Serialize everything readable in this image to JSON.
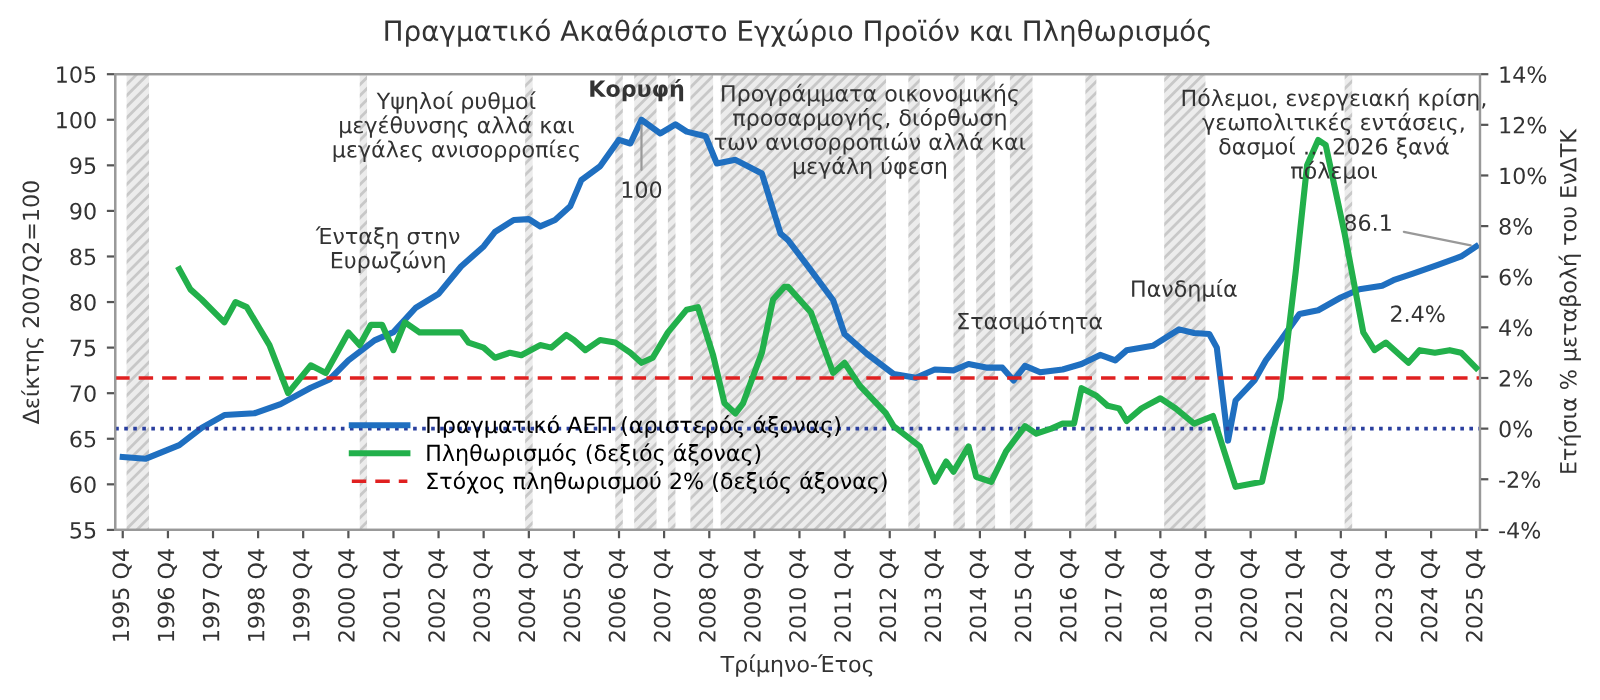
{
  "chart_data": {
    "type": "line",
    "title": "Πραγματικό Ακαθάριστο Εγχώριο Προϊόν και Πληθωρισμός",
    "xlabel": "Τρίμηνο-Έτος",
    "ylabel": "Δείκτης 2007Q2=100",
    "y2label": "Ετήσια % μεταβολή του ΕνΔΤΚ",
    "series": [
      {
        "name": "Πραγματικό ΑΕΠ (αριστερός άξονας)",
        "color": "#1f6fc0",
        "axis": "y",
        "x": [
          "1995-10",
          "1996-04",
          "1997-01",
          "1997-07",
          "1998-01",
          "1998-09",
          "1999-04",
          "1999-12",
          "2000-05",
          "2000-10",
          "2001-05",
          "2001-10",
          "2002-04",
          "2002-10",
          "2003-04",
          "2003-10",
          "2004-01",
          "2004-06",
          "2004-10",
          "2005-01",
          "2005-05",
          "2005-09",
          "2005-12",
          "2006-05",
          "2006-10",
          "2007-01",
          "2007-04",
          "2007-09",
          "2008-01",
          "2008-04",
          "2008-09",
          "2008-12",
          "2009-05",
          "2009-12",
          "2010-05",
          "2010-07",
          "2011-01",
          "2011-07",
          "2011-10",
          "2012-04",
          "2012-11",
          "2013-05",
          "2013-10",
          "2014-03",
          "2014-07",
          "2014-12",
          "2015-04",
          "2015-07",
          "2015-10",
          "2016-02",
          "2016-08",
          "2017-01",
          "2017-06",
          "2017-10",
          "2018-01",
          "2018-08",
          "2019-03",
          "2019-07",
          "2019-11",
          "2020-01",
          "2020-04",
          "2020-06",
          "2020-11",
          "2021-02",
          "2021-06",
          "2021-11",
          "2022-04",
          "2022-10",
          "2023-03",
          "2023-09",
          "2023-12",
          "2024-05",
          "2024-12",
          "2025-06",
          "2025-10"
        ],
        "values": [
          63,
          62.8,
          64.3,
          66.2,
          67.6,
          67.8,
          68.8,
          70.6,
          71.5,
          73.6,
          75.8,
          76.7,
          79.4,
          80.9,
          83.9,
          86.1,
          87.7,
          89.0,
          89.1,
          88.3,
          89.0,
          90.5,
          93.4,
          94.9,
          97.8,
          97.4,
          100,
          98.5,
          99.5,
          98.7,
          98.2,
          95.2,
          95.6,
          94.1,
          87.5,
          86.8,
          83.5,
          80.2,
          76.5,
          74.3,
          72.1,
          71.7,
          72.6,
          72.5,
          73.2,
          72.8,
          72.8,
          71.4,
          73.0,
          72.3,
          72.6,
          73.2,
          74.2,
          73.6,
          74.7,
          75.2,
          77.0,
          76.6,
          76.5,
          75.0,
          64.8,
          69.2,
          71.4,
          73.6,
          75.8,
          78.7,
          79.1,
          80.5,
          81.4,
          81.8,
          82.4,
          83.1,
          84.1,
          85.0,
          86.1
        ]
      },
      {
        "name": "Πληθωρισμός (δεξιός άξονας)",
        "color": "#22b04b",
        "axis": "y2",
        "x": [
          "1997-01",
          "1997-04",
          "1997-07",
          "1998-01",
          "1998-04",
          "1998-07",
          "1999-01",
          "1999-06",
          "1999-12",
          "2000-04",
          "2000-10",
          "2001-01",
          "2001-04",
          "2001-07",
          "2001-10",
          "2002-01",
          "2002-05",
          "2003-04",
          "2003-06",
          "2003-10",
          "2004-01",
          "2004-05",
          "2004-08",
          "2005-01",
          "2005-04",
          "2005-08",
          "2005-10",
          "2006-01",
          "2006-05",
          "2006-09",
          "2007-01",
          "2007-04",
          "2007-07",
          "2007-11",
          "2008-04",
          "2008-07",
          "2008-11",
          "2009-02",
          "2009-05",
          "2009-07",
          "2009-12",
          "2010-03",
          "2010-06",
          "2010-07",
          "2011-01",
          "2011-07",
          "2011-10",
          "2012-02",
          "2012-09",
          "2012-11",
          "2013-06",
          "2013-10",
          "2014-01",
          "2014-03",
          "2014-07",
          "2014-09",
          "2015-01",
          "2015-05",
          "2015-10",
          "2016-01",
          "2016-05",
          "2016-08",
          "2016-11",
          "2017-01",
          "2017-05",
          "2017-08",
          "2017-11",
          "2018-01",
          "2018-05",
          "2018-10",
          "2019-02",
          "2019-07",
          "2019-12",
          "2020-03",
          "2020-06",
          "2021-01",
          "2021-06",
          "2021-10",
          "2022-01",
          "2022-04",
          "2022-06",
          "2022-11",
          "2023-04",
          "2023-07",
          "2023-10",
          "2024-04",
          "2024-07",
          "2024-11",
          "2025-03",
          "2025-06",
          "2025-10"
        ],
        "values": [
          6.3,
          5.5,
          5.1,
          4.2,
          5.0,
          4.8,
          3.3,
          1.4,
          2.5,
          2.2,
          3.8,
          3.3,
          4.1,
          4.1,
          3.1,
          4.2,
          3.8,
          3.8,
          3.4,
          3.2,
          2.8,
          3.0,
          2.9,
          3.3,
          3.2,
          3.7,
          3.5,
          3.1,
          3.5,
          3.4,
          3.0,
          2.6,
          2.8,
          3.8,
          4.7,
          4.8,
          2.9,
          1.0,
          0.6,
          1.0,
          3.0,
          5.1,
          5.6,
          5.6,
          4.6,
          2.2,
          2.6,
          1.7,
          0.6,
          0.1,
          -0.7,
          -2.1,
          -1.3,
          -1.7,
          -0.7,
          -1.9,
          -2.1,
          -0.9,
          0.1,
          -0.2,
          0.0,
          0.2,
          0.2,
          1.6,
          1.3,
          0.9,
          0.8,
          0.3,
          0.8,
          1.2,
          0.8,
          0.2,
          0.5,
          -0.9,
          -2.3,
          -2.1,
          1.2,
          6.2,
          10.4,
          11.4,
          11.2,
          7.7,
          3.8,
          3.1,
          3.4,
          2.6,
          3.1,
          3.0,
          3.1,
          3.0,
          2.4
        ]
      }
    ],
    "ref_lines": [
      {
        "axis": "y2",
        "value": 2,
        "label": "Στόχος πληθωρισμού 2% (δεξιός άξονας)",
        "color": "#e02020",
        "line_style": "dashed"
      },
      {
        "axis": "y2",
        "value": 0,
        "color": "#2a3f9e",
        "line_style": "dotted"
      }
    ],
    "bands": [
      {
        "axis": "x",
        "from": "1995-11",
        "to": "1996-05"
      },
      {
        "axis": "x",
        "from": "2001-01",
        "to": "2001-03"
      },
      {
        "axis": "x",
        "from": "2004-09",
        "to": "2004-11"
      },
      {
        "axis": "x",
        "from": "2006-09",
        "to": "2006-11"
      },
      {
        "axis": "x",
        "from": "2007-02",
        "to": "2007-08"
      },
      {
        "axis": "x",
        "from": "2007-11",
        "to": "2008-01"
      },
      {
        "axis": "x",
        "from": "2008-05",
        "to": "2008-11"
      },
      {
        "axis": "x",
        "from": "2009-01",
        "to": "2012-09"
      },
      {
        "axis": "x",
        "from": "2013-03",
        "to": "2013-06"
      },
      {
        "axis": "x",
        "from": "2014-03",
        "to": "2014-06"
      },
      {
        "axis": "x",
        "from": "2014-09",
        "to": "2015-02"
      },
      {
        "axis": "x",
        "from": "2015-06",
        "to": "2015-12"
      },
      {
        "axis": "x",
        "from": "2017-02",
        "to": "2017-05"
      },
      {
        "axis": "x",
        "from": "2018-11",
        "to": "2019-10"
      },
      {
        "axis": "x",
        "from": "2022-11",
        "to": "2023-01"
      }
    ],
    "annotations": [
      "Ένταξη στην\nΕυρωζώνη",
      "Υψηλοί ρυθμοί\nμεγέθυνσης αλλά και\nμεγάλες ανισορροπίες",
      "Κορυφή",
      "Προγράμματα οικονομικής\nπροσαρμογής, διόρθωση\nτων ανισορροπιών αλλά και\nμεγάλη ύφεση",
      "Στασιμότητα",
      "Πανδημία",
      "Πόλεμοι, ενεργειακή κρίση,\nγεωπολιτικές εντάσεις,\nδασμοί … 2026 ξανά\nπόλεμοι",
      {
        "text": "100",
        "x": "2007-04",
        "y": 100
      },
      {
        "text": "86.1",
        "x": "2025-10",
        "y": 86.1
      },
      "2.4%"
    ],
    "xlim": [
      "1995-08",
      "2025-11"
    ],
    "xticks": [
      {
        "value": "1995-10",
        "label": "1995 Q4"
      },
      {
        "value": "1996-10",
        "label": "1996 Q4"
      },
      {
        "value": "1997-10",
        "label": "1997 Q4"
      },
      {
        "value": "1998-10",
        "label": "1998 Q4"
      },
      {
        "value": "1999-10",
        "label": "1999 Q4"
      },
      {
        "value": "2000-10",
        "label": "2000 Q4"
      },
      {
        "value": "2001-10",
        "label": "2001 Q4"
      },
      {
        "value": "2002-10",
        "label": "2002 Q4"
      },
      {
        "value": "2003-10",
        "label": "2003 Q4"
      },
      {
        "value": "2004-10",
        "label": "2004 Q4"
      },
      {
        "value": "2005-10",
        "label": "2005 Q4"
      },
      {
        "value": "2006-10",
        "label": "2006 Q4"
      },
      {
        "value": "2007-10",
        "label": "2007 Q4"
      },
      {
        "value": "2008-10",
        "label": "2008 Q4"
      },
      {
        "value": "2009-10",
        "label": "2009 Q4"
      },
      {
        "value": "2010-10",
        "label": "2010 Q4"
      },
      {
        "value": "2011-10",
        "label": "2011 Q4"
      },
      {
        "value": "2012-10",
        "label": "2012 Q4"
      },
      {
        "value": "2013-10",
        "label": "2013 Q4"
      },
      {
        "value": "2014-10",
        "label": "2014 Q4"
      },
      {
        "value": "2015-10",
        "label": "2015 Q4"
      },
      {
        "value": "2016-10",
        "label": "2016 Q4"
      },
      {
        "value": "2017-10",
        "label": "2017 Q4"
      },
      {
        "value": "2018-10",
        "label": "2018 Q4"
      },
      {
        "value": "2019-10",
        "label": "2019 Q4"
      },
      {
        "value": "2020-10",
        "label": "2020 Q4"
      },
      {
        "value": "2021-10",
        "label": "2021 Q4"
      },
      {
        "value": "2022-10",
        "label": "2022 Q4"
      },
      {
        "value": "2023-10",
        "label": "2023 Q4"
      },
      {
        "value": "2024-10",
        "label": "2024 Q4"
      },
      {
        "value": "2025-10",
        "label": "2025 Q4"
      }
    ],
    "ylim": [
      55,
      105
    ],
    "yticks": [
      55,
      60,
      65,
      70,
      75,
      80,
      85,
      90,
      95,
      100,
      105
    ],
    "y2lim": [
      -4,
      14
    ],
    "y2ticks": [
      {
        "value": -4,
        "label": "-4%"
      },
      {
        "value": -2,
        "label": "-2%"
      },
      {
        "value": 0,
        "label": "0%"
      },
      {
        "value": 2,
        "label": "2%"
      },
      {
        "value": 4,
        "label": "4%"
      },
      {
        "value": 6,
        "label": "6%"
      },
      {
        "value": 8,
        "label": "8%"
      },
      {
        "value": 10,
        "label": "10%"
      },
      {
        "value": 12,
        "label": "12%"
      },
      {
        "value": 14,
        "label": "14%"
      }
    ],
    "grid": false,
    "legend": "bottom",
    "line_style": "solid",
    "marker": "none"
  }
}
